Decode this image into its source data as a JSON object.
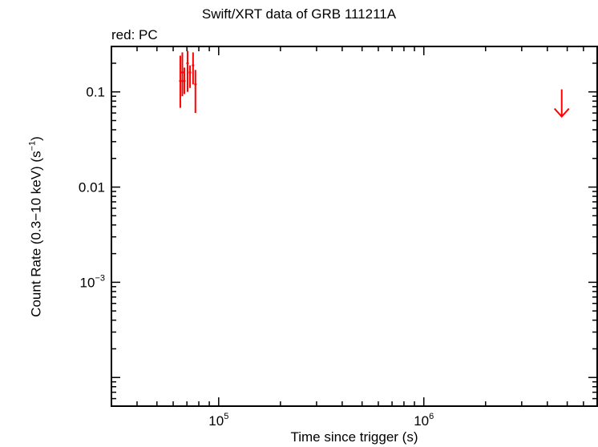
{
  "chart_data": {
    "type": "scatter",
    "title": "Swift/XRT data of GRB 111211A",
    "subtitle": "red: PC",
    "xlabel": "Time since trigger (s)",
    "ylabel_parts": [
      "Count Rate (0.3−10 keV) (s",
      "−1",
      ")"
    ],
    "x_scale": "log",
    "y_scale": "log",
    "xlim": [
      30000,
      7000000
    ],
    "ylim": [
      5e-05,
      0.3
    ],
    "x_tick_labels": [
      {
        "value": 100000,
        "base": "10",
        "exp": "5"
      },
      {
        "value": 1000000,
        "base": "10",
        "exp": "6"
      }
    ],
    "y_tick_labels": [
      {
        "value": 0.1,
        "text": "0.1"
      },
      {
        "value": 0.01,
        "text": "0.01"
      },
      {
        "value": 0.001,
        "base": "10",
        "exp": "−3"
      }
    ],
    "series": [
      {
        "mode": "PC",
        "color": "#ff0000",
        "points": [
          {
            "x": 65000,
            "y": 0.13,
            "ylo": 0.068,
            "yhi": 0.24
          },
          {
            "x": 66500,
            "y": 0.16,
            "ylo": 0.09,
            "yhi": 0.26
          },
          {
            "x": 68000,
            "y": 0.13,
            "ylo": 0.095,
            "yhi": 0.18
          },
          {
            "x": 70500,
            "y": 0.2,
            "ylo": 0.1,
            "yhi": 0.27
          },
          {
            "x": 72500,
            "y": 0.16,
            "ylo": 0.11,
            "yhi": 0.19
          },
          {
            "x": 75000,
            "y": 0.19,
            "ylo": 0.12,
            "yhi": 0.26
          },
          {
            "x": 77000,
            "y": 0.12,
            "ylo": 0.06,
            "yhi": 0.17
          }
        ],
        "upper_limits": [
          {
            "x": 4700000,
            "y": 0.055
          }
        ]
      }
    ]
  }
}
